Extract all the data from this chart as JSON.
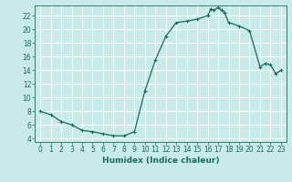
{
  "x": [
    0,
    1,
    2,
    3,
    4,
    5,
    6,
    7,
    8,
    9,
    10,
    11,
    12,
    13,
    14,
    15,
    16,
    16.3,
    16.6,
    17,
    17.3,
    17.6,
    18,
    19,
    20,
    21,
    21.5,
    22,
    22.5,
    23
  ],
  "y": [
    8.0,
    7.5,
    6.5,
    6.0,
    5.2,
    5.0,
    4.7,
    4.4,
    4.4,
    5.0,
    11.0,
    15.5,
    19.0,
    21.0,
    21.2,
    21.5,
    22.0,
    23.0,
    22.8,
    23.2,
    22.8,
    22.5,
    21.0,
    20.5,
    19.8,
    14.5,
    15.0,
    14.8,
    13.5,
    14.0
  ],
  "line_color": "#1a6b5a",
  "marker": "+",
  "bg_color": "#c8eaea",
  "grid_color": "#b0dede",
  "xlabel": "Humidex (Indice chaleur)",
  "xlim": [
    -0.5,
    23.5
  ],
  "ylim": [
    3.5,
    23.5
  ],
  "yticks": [
    4,
    6,
    8,
    10,
    12,
    14,
    16,
    18,
    20,
    22
  ],
  "xticks": [
    0,
    1,
    2,
    3,
    4,
    5,
    6,
    7,
    8,
    9,
    10,
    11,
    12,
    13,
    14,
    15,
    16,
    17,
    18,
    19,
    20,
    21,
    22,
    23
  ],
  "tick_fontsize": 5.5,
  "xlabel_fontsize": 6.5,
  "linewidth": 0.9,
  "markersize": 3.5,
  "markeredgewidth": 0.8,
  "white_grid_color": "#ffffff"
}
